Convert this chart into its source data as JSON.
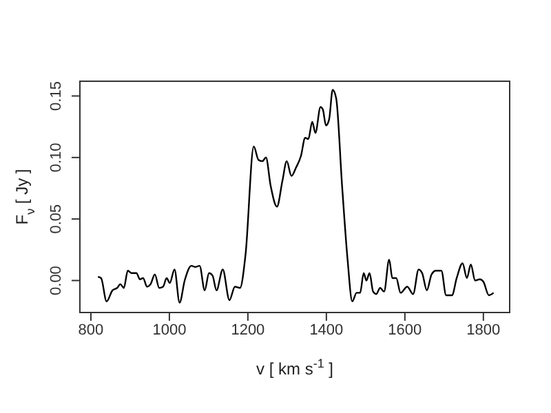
{
  "chart_data": {
    "type": "line",
    "xlabel": "v [ km s$^{-1}$ ]",
    "ylabel": "F$_{ν}$ [ Jy ]",
    "xlim": [
      772,
      1867
    ],
    "ylim": [
      -0.026,
      0.162
    ],
    "xticks": [
      800,
      1000,
      1200,
      1400,
      1600,
      1800
    ],
    "yticks": [
      {
        "value": 0,
        "label": "0.00"
      },
      0.05,
      {
        "value": 0.1,
        "label": "0.10"
      },
      0.15
    ],
    "grid": false,
    "legend": false,
    "marker": "none",
    "line_style": "solid",
    "series": [
      {
        "color": "#000000",
        "x": [
          818,
          826,
          840,
          855,
          867,
          875,
          884,
          894,
          904,
          916,
          925,
          933,
          943,
          952,
          963,
          974,
          984,
          993,
          1001,
          1013,
          1026,
          1039,
          1056,
          1066,
          1077,
          1090,
          1101,
          1110,
          1120,
          1136,
          1153,
          1167,
          1180,
          1194,
          1215,
          1227,
          1237,
          1246,
          1258,
          1274,
          1288,
          1299,
          1311,
          1323,
          1335,
          1346,
          1354,
          1364,
          1372,
          1385,
          1391,
          1399,
          1407,
          1416,
          1425,
          1440,
          1454,
          1466,
          1477,
          1486,
          1495,
          1502,
          1510,
          1519,
          1527,
          1537,
          1547,
          1560,
          1568,
          1578,
          1589,
          1606,
          1621,
          1635,
          1644,
          1656,
          1668,
          1679,
          1693,
          1705,
          1720,
          1732,
          1747,
          1758,
          1768,
          1779,
          1791,
          1800,
          1814,
          1826
        ],
        "values": [
          0.003,
          0.002,
          -0.017,
          -0.008,
          -0.006,
          -0.003,
          -0.006,
          0.008,
          0.006,
          0.006,
          0.001,
          0.002,
          -0.005,
          -0.003,
          0.005,
          -0.006,
          -0.005,
          0.002,
          -0.002,
          0.009,
          -0.018,
          0.0,
          0.012,
          0.011,
          0.012,
          -0.008,
          0.006,
          0.004,
          -0.008,
          0.009,
          -0.016,
          -0.005,
          -0.006,
          0.021,
          0.109,
          0.098,
          0.097,
          0.1,
          0.077,
          0.06,
          0.081,
          0.097,
          0.085,
          0.092,
          0.101,
          0.116,
          0.115,
          0.129,
          0.12,
          0.141,
          0.139,
          0.126,
          0.131,
          0.155,
          0.148,
          0.077,
          0.017,
          -0.017,
          -0.01,
          -0.01,
          0.006,
          0.0,
          0.006,
          -0.009,
          -0.011,
          -0.006,
          -0.009,
          0.017,
          0.002,
          0.002,
          -0.01,
          -0.005,
          -0.011,
          0.009,
          0.006,
          -0.008,
          0.005,
          0.008,
          0.008,
          -0.012,
          -0.012,
          0.002,
          0.014,
          0.002,
          0.013,
          0.0,
          0.001,
          -0.001,
          -0.012,
          -0.01
        ]
      }
    ]
  }
}
